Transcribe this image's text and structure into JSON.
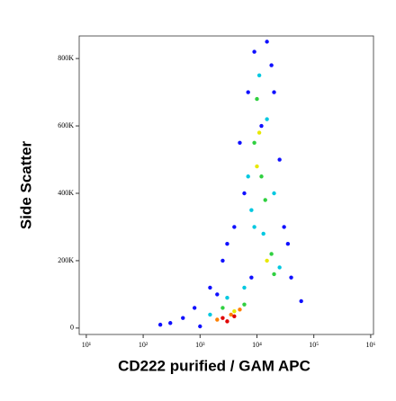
{
  "chart_data": {
    "type": "scatter",
    "xlabel": "CD222 purified / GAM APC",
    "ylabel": "Side Scatter",
    "log_x": true,
    "xlim": [
      7.5,
      1120000
    ],
    "xticks": [
      {
        "value": 10,
        "label": "10¹"
      },
      {
        "value": 100,
        "label": "10²"
      },
      {
        "value": 1000,
        "label": "10³"
      },
      {
        "value": 10000,
        "label": "10⁴"
      },
      {
        "value": 100000,
        "label": "10⁵"
      },
      {
        "value": 1000000,
        "label": "10⁶"
      }
    ],
    "ylim": [
      -19000,
      867000
    ],
    "yticks": [
      0,
      {
        "value": 200000,
        "label": "200K"
      },
      {
        "value": 400000,
        "label": "400K"
      },
      {
        "value": 600000,
        "label": "600K"
      },
      {
        "value": 800000,
        "label": "800K"
      }
    ],
    "series": [
      {
        "color": "#1010ff",
        "x": [
          200,
          500,
          800,
          1500,
          2500,
          4000,
          6000,
          5000,
          7000,
          9000,
          15000,
          20000,
          25000,
          30000,
          40000,
          60000,
          1000,
          300,
          3000,
          12000,
          18000,
          35000,
          8000,
          2000
        ],
        "values": [
          10000,
          30000,
          60000,
          120000,
          200000,
          300000,
          400000,
          550000,
          700000,
          820000,
          850000,
          700000,
          500000,
          300000,
          150000,
          80000,
          5000,
          15000,
          250000,
          600000,
          780000,
          250000,
          150000,
          100000
        ]
      },
      {
        "color": "#00c8e0",
        "x": [
          7000,
          9000,
          15000,
          11000,
          20000,
          6000,
          3000,
          25000,
          1500,
          8000,
          13000
        ],
        "values": [
          450000,
          300000,
          620000,
          750000,
          400000,
          120000,
          90000,
          180000,
          40000,
          350000,
          280000
        ]
      },
      {
        "color": "#30d040",
        "x": [
          9000,
          12000,
          10000,
          14000,
          18000,
          2500,
          6000,
          20000
        ],
        "values": [
          550000,
          450000,
          680000,
          380000,
          220000,
          60000,
          70000,
          160000
        ]
      },
      {
        "color": "#e8e800",
        "x": [
          10000,
          11000,
          4000,
          15000
        ],
        "values": [
          480000,
          580000,
          50000,
          200000
        ]
      },
      {
        "color": "#ff8000",
        "x": [
          3500,
          5000,
          2000
        ],
        "values": [
          40000,
          55000,
          25000
        ]
      },
      {
        "color": "#e00000",
        "x": [
          2500,
          4000,
          3000
        ],
        "values": [
          30000,
          35000,
          20000
        ]
      }
    ]
  }
}
